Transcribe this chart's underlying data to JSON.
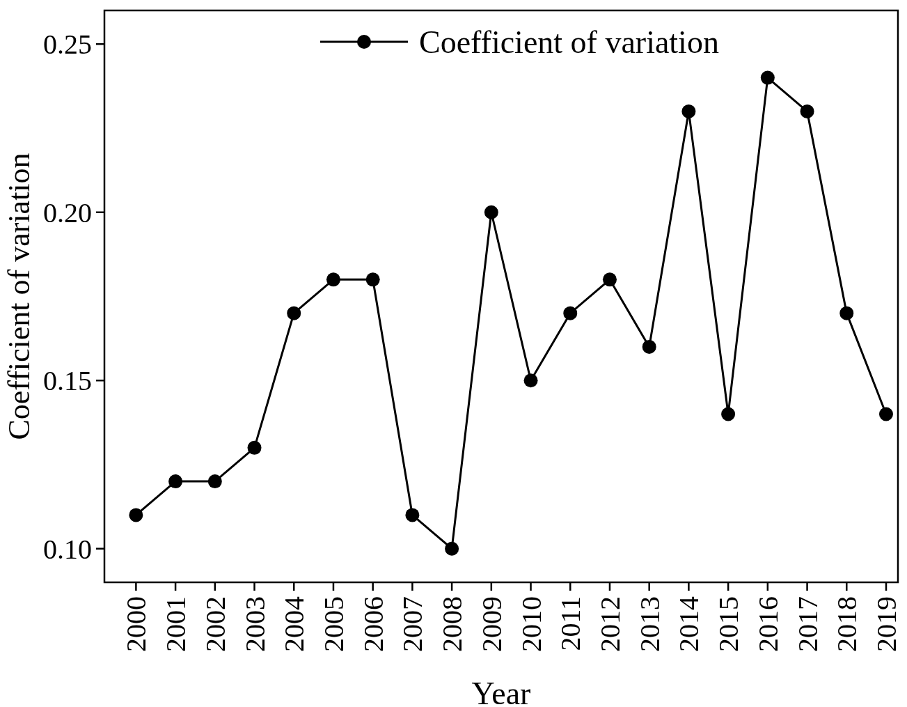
{
  "chart_data": {
    "type": "line",
    "xlabel": "Year",
    "ylabel": "Coefficient of variation",
    "x": [
      2000,
      2001,
      2002,
      2003,
      2004,
      2005,
      2006,
      2007,
      2008,
      2009,
      2010,
      2011,
      2012,
      2013,
      2014,
      2015,
      2016,
      2017,
      2018,
      2019
    ],
    "series": [
      {
        "name": "Coefficient of variation",
        "color": "#000000",
        "values": [
          0.11,
          0.12,
          0.12,
          0.13,
          0.17,
          0.18,
          0.18,
          0.11,
          0.1,
          0.2,
          0.15,
          0.17,
          0.18,
          0.16,
          0.23,
          0.14,
          0.24,
          0.23,
          0.17,
          0.14
        ]
      }
    ],
    "xlim": [
      1999.2,
      2019.3
    ],
    "xticks": [
      2000,
      2001,
      2002,
      2003,
      2004,
      2005,
      2006,
      2007,
      2008,
      2009,
      2010,
      2011,
      2012,
      2013,
      2014,
      2015,
      2016,
      2017,
      2018,
      2019
    ],
    "ylim": [
      0.09,
      0.26
    ],
    "yticks": [
      {
        "value": 0.1,
        "label": "0.10"
      },
      {
        "value": 0.15,
        "label": "0.15"
      },
      {
        "value": 0.2,
        "label": "0.20"
      },
      {
        "value": 0.25,
        "label": "0.25"
      }
    ],
    "marker": "circle",
    "line_style": "solid",
    "legend": "top",
    "grid": false
  }
}
